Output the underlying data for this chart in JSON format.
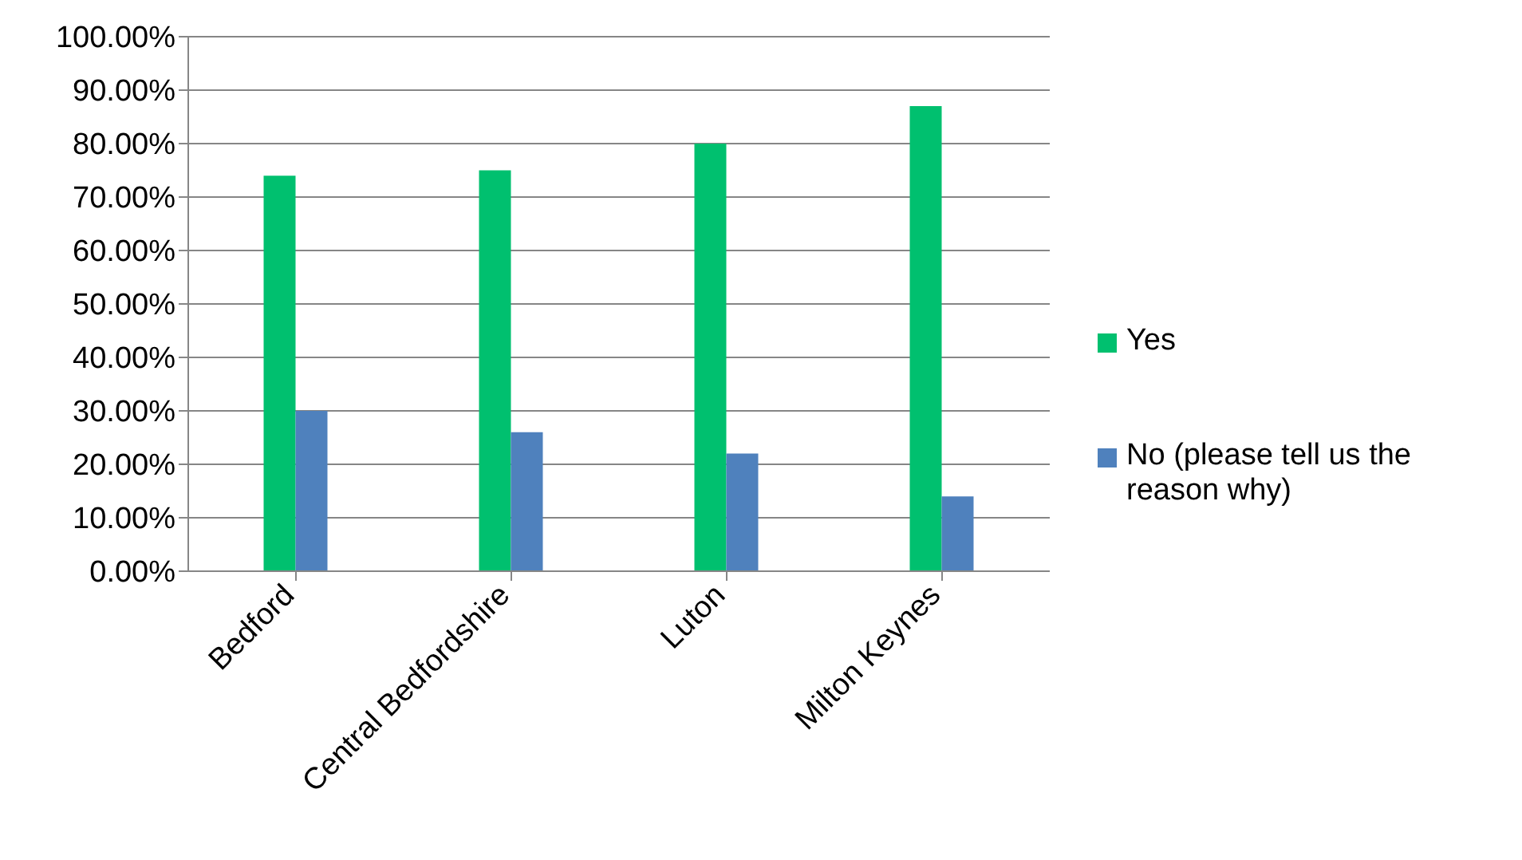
{
  "chart_data": {
    "type": "bar",
    "categories": [
      "Bedford",
      "Central Bedfordshire",
      "Luton",
      "Milton Keynes"
    ],
    "series": [
      {
        "name": "Yes",
        "color": "#00c06f",
        "values": [
          74,
          75,
          80,
          87
        ]
      },
      {
        "name": "No (please tell us the reason why)",
        "color": "#4f81bd",
        "values": [
          30,
          26,
          22,
          14
        ]
      }
    ],
    "ylim": [
      0,
      100
    ],
    "yticks": [
      {
        "value": 0,
        "label": "0.00%"
      },
      {
        "value": 10,
        "label": "10.00%"
      },
      {
        "value": 20,
        "label": "20.00%"
      },
      {
        "value": 30,
        "label": "30.00%"
      },
      {
        "value": 40,
        "label": "40.00%"
      },
      {
        "value": 50,
        "label": "50.00%"
      },
      {
        "value": 60,
        "label": "60.00%"
      },
      {
        "value": 70,
        "label": "70.00%"
      },
      {
        "value": 80,
        "label": "80.00%"
      },
      {
        "value": 90,
        "label": "90.00%"
      },
      {
        "value": 100,
        "label": "100.00%"
      }
    ],
    "grid": "y",
    "legend": "right"
  }
}
